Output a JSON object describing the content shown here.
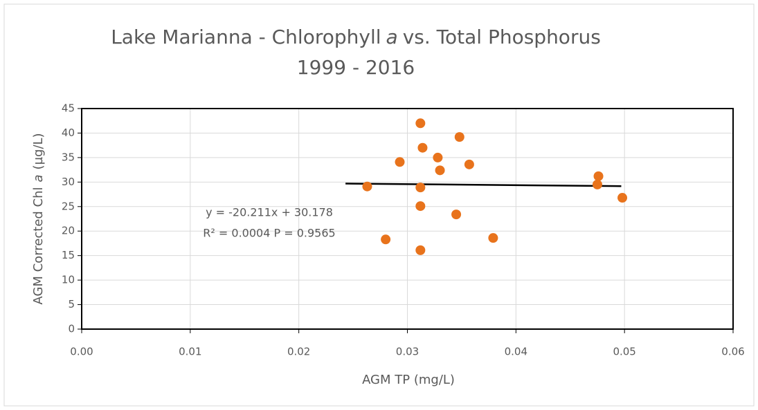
{
  "chart_data": {
    "type": "scatter",
    "title": [
      "Lake Marianna - Chlorophyll",
      "a",
      "vs. Total Phosphorus"
    ],
    "subtitle": "1999 - 2016",
    "xlabel": "AGM TP (mg/L)",
    "ylabel": [
      "AGM Corrected Chl",
      "a",
      "(µg/L)"
    ],
    "annotations": [
      "y = -20.211x + 30.178",
      "R² = 0.0004 P = 0.9565"
    ],
    "x": [
      0.0263,
      0.028,
      0.0293,
      0.0312,
      0.0312,
      0.0312,
      0.0312,
      0.0314,
      0.0328,
      0.033,
      0.0345,
      0.0348,
      0.0357,
      0.0379,
      0.0476,
      0.0475,
      0.0498
    ],
    "values": [
      29.1,
      18.3,
      34.1,
      42.0,
      28.9,
      25.1,
      16.1,
      37.0,
      35.0,
      32.4,
      23.4,
      39.2,
      33.6,
      18.6,
      31.2,
      29.5,
      26.8
    ],
    "color": "#e8731c",
    "trendline": {
      "x": [
        0.0243,
        0.0497
      ],
      "y": [
        29.69,
        29.17
      ],
      "color": "#000000"
    },
    "xlim": [
      0,
      0.06
    ],
    "xticks": [
      {
        "value": 0,
        "label": "0.00"
      },
      {
        "value": 0.01,
        "label": "0.01"
      },
      {
        "value": 0.02,
        "label": "0.02"
      },
      {
        "value": 0.03,
        "label": "0.03"
      },
      {
        "value": 0.04,
        "label": "0.04"
      },
      {
        "value": 0.05,
        "label": "0.05"
      },
      {
        "value": 0.06,
        "label": "0.06"
      }
    ],
    "ylim": [
      0,
      45
    ],
    "yticks": [
      0,
      5,
      10,
      15,
      20,
      25,
      30,
      35,
      40,
      45
    ],
    "grid": true
  }
}
